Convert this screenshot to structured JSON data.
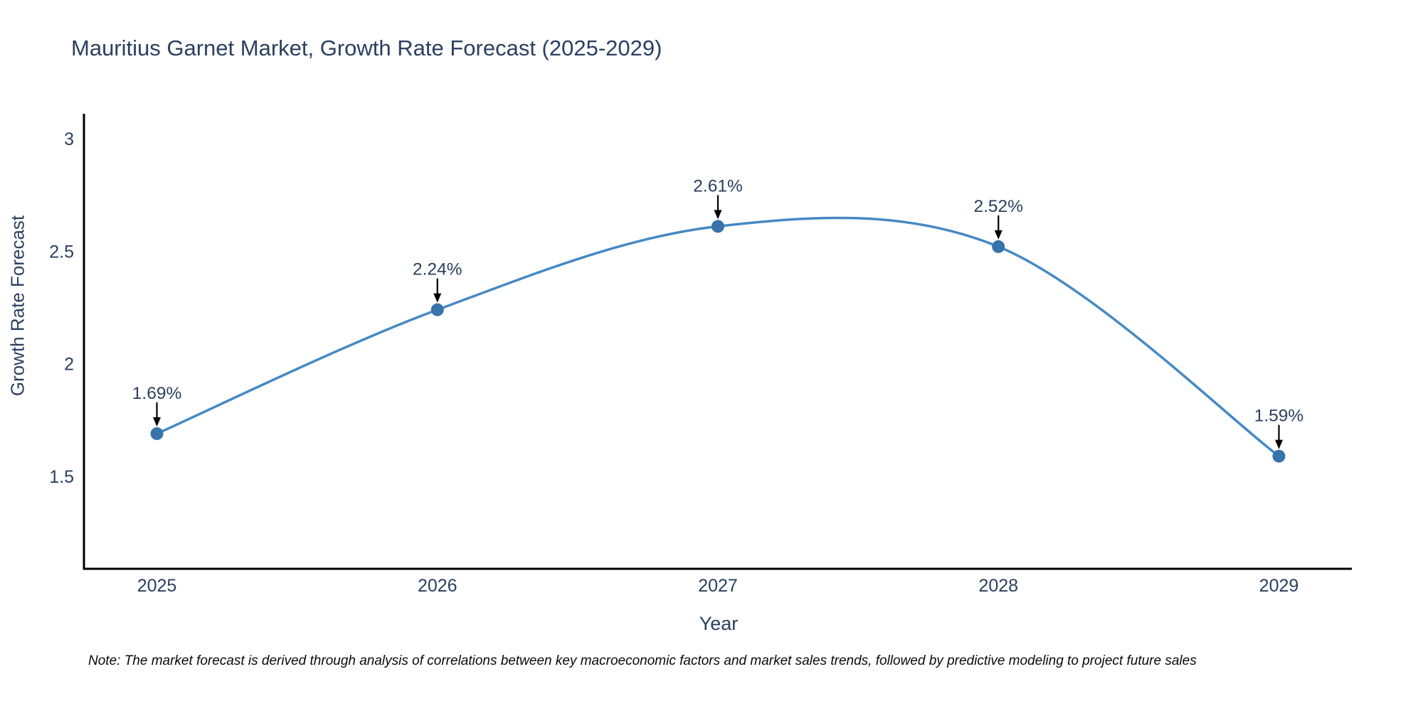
{
  "title": "Mauritius Garnet Market, Growth Rate Forecast (2025-2029)",
  "note": "Note: The market forecast is derived through analysis of correlations between key macroeconomic factors and market sales trends, followed by predictive modeling to project future sales",
  "chart_data": {
    "type": "line",
    "title": "Mauritius Garnet Market, Growth Rate Forecast (2025-2029)",
    "xlabel": "Year",
    "ylabel": "Growth Rate Forecast",
    "x": [
      2025,
      2026,
      2027,
      2028,
      2029
    ],
    "values": [
      1.69,
      2.24,
      2.61,
      2.52,
      1.59
    ],
    "point_labels": [
      "1.69%",
      "2.24%",
      "2.61%",
      "2.52%",
      "1.59%"
    ],
    "xtick_labels": [
      "2025",
      "2026",
      "2027",
      "2028",
      "2029"
    ],
    "yticks": [
      3,
      2.5,
      2,
      1.5
    ],
    "ytick_labels": [
      "3",
      "2.5",
      "2",
      "1.5"
    ],
    "xlim": [
      2024.74,
      2029.26
    ],
    "ylim": [
      1.09,
      3.11
    ],
    "grid": false,
    "legend": "none",
    "line_shape": "spline",
    "annotation_style": "label-above-with-down-arrow",
    "colors": {
      "line": "#4689c4",
      "marker": "#3873ac",
      "axis": "#000000",
      "text": "#2a3f5f",
      "annotation_arrow": "#000000"
    }
  }
}
